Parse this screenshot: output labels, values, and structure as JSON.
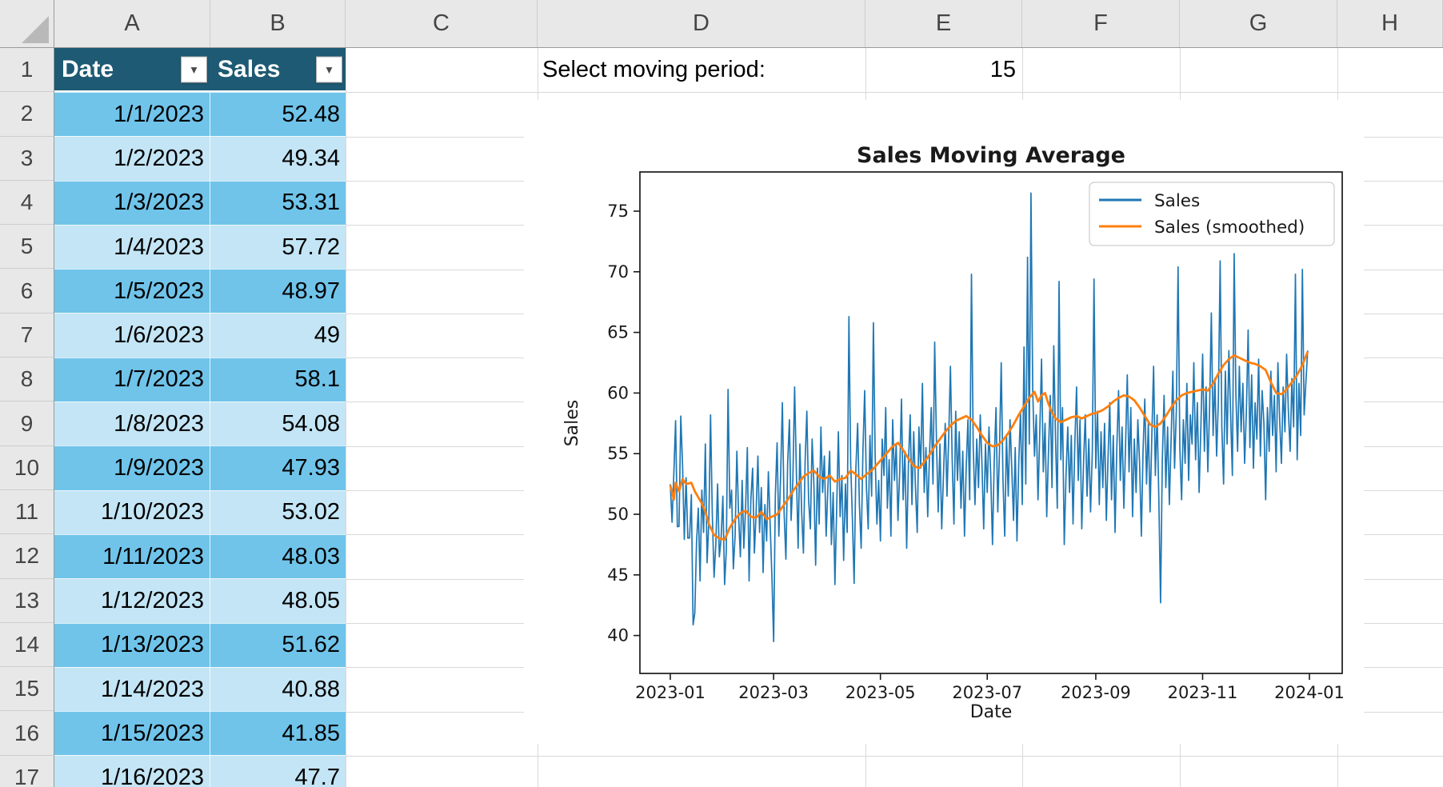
{
  "sheet": {
    "column_letters": [
      "A",
      "B",
      "C",
      "D",
      "E",
      "F",
      "G",
      "H"
    ],
    "row_numbers": [
      "1",
      "2",
      "3",
      "4",
      "5",
      "6",
      "7",
      "8",
      "9",
      "10",
      "11",
      "12",
      "13",
      "14",
      "15",
      "16",
      "17"
    ]
  },
  "controls": {
    "moving_period_label": "Select moving period:",
    "moving_period_value": "15"
  },
  "table": {
    "headers": {
      "date": "Date",
      "sales": "Sales"
    },
    "filter_icon": "▾",
    "colors": {
      "header_bg": "#1E5A73",
      "band_dark": "#70C4EA",
      "band_light": "#C3E5F5"
    },
    "rows": [
      {
        "date": "1/1/2023",
        "sales": "52.48"
      },
      {
        "date": "1/2/2023",
        "sales": "49.34"
      },
      {
        "date": "1/3/2023",
        "sales": "53.31"
      },
      {
        "date": "1/4/2023",
        "sales": "57.72"
      },
      {
        "date": "1/5/2023",
        "sales": "48.97"
      },
      {
        "date": "1/6/2023",
        "sales": "49"
      },
      {
        "date": "1/7/2023",
        "sales": "58.1"
      },
      {
        "date": "1/8/2023",
        "sales": "54.08"
      },
      {
        "date": "1/9/2023",
        "sales": "47.93"
      },
      {
        "date": "1/10/2023",
        "sales": "53.02"
      },
      {
        "date": "1/11/2023",
        "sales": "48.03"
      },
      {
        "date": "1/12/2023",
        "sales": "48.05"
      },
      {
        "date": "1/13/2023",
        "sales": "51.62"
      },
      {
        "date": "1/14/2023",
        "sales": "40.88"
      },
      {
        "date": "1/15/2023",
        "sales": "41.85"
      },
      {
        "date": "1/16/2023",
        "sales": "47.7"
      }
    ]
  },
  "chart_data": {
    "type": "line",
    "title": "Sales Moving Average",
    "xlabel": "Date",
    "ylabel": "Sales",
    "x_tick_labels": [
      "2023-01",
      "2023-03",
      "2023-05",
      "2023-07",
      "2023-09",
      "2023-11",
      "2024-01"
    ],
    "x_tick_days": [
      0,
      59,
      120,
      181,
      243,
      304,
      365
    ],
    "y_ticks": [
      40,
      45,
      50,
      55,
      60,
      65,
      70,
      75
    ],
    "ylim": [
      36.9,
      78.3
    ],
    "xlim_days": [
      -17.4,
      382.4
    ],
    "grid": false,
    "legend_position": "upper right",
    "legend": [
      "Sales",
      "Sales (smoothed)"
    ],
    "series": [
      {
        "name": "Sales",
        "color": "#1f77b4",
        "start_date": "2023-01-01",
        "values": [
          52.48,
          49.34,
          53.31,
          57.72,
          48.97,
          49,
          58.1,
          54.08,
          47.93,
          53.02,
          48.03,
          48.05,
          51.62,
          40.88,
          41.85,
          47.7,
          50.5,
          44.5,
          52,
          48.5,
          55.8,
          46,
          49.5,
          58.2,
          50,
          44.8,
          47.5,
          52.5,
          46.5,
          48,
          51.5,
          44.2,
          47,
          60.3,
          50.5,
          52,
          45.5,
          48.2,
          55.2,
          49.8,
          46.5,
          52.8,
          47.2,
          50.5,
          55.5,
          44.5,
          51.2,
          53.8,
          46.8,
          50.2,
          54.8,
          48.5,
          52.2,
          45.2,
          50.8,
          47.8,
          53.5,
          49.2,
          44.9,
          39.5,
          51.5,
          55.9,
          48.2,
          53.2,
          59.2,
          50.1,
          46.3,
          54.2,
          57.8,
          49.5,
          52.8,
          60.5,
          53.5,
          47.2,
          55.8,
          50.2,
          46.8,
          54.5,
          58.5,
          51.2,
          48.8,
          56.2,
          52.5,
          45.8,
          53.8,
          49.2,
          57.2,
          51.8,
          54.8,
          48.2,
          52.2,
          55.2,
          47.5,
          51.8,
          44.2,
          50.5,
          56.8,
          49.8,
          53.2,
          46.2,
          52.5,
          48.5,
          66.3,
          54.2,
          49.5,
          44.3,
          53.8,
          57.5,
          50.8,
          47.2,
          55.2,
          60.2,
          52.2,
          48.8,
          56.5,
          51.5,
          65.8,
          54.8,
          49.2,
          52.8,
          47.8,
          56.2,
          53.2,
          58.8,
          50.5,
          54.5,
          48.2,
          57.8,
          52.8,
          55.8,
          49.5,
          53.5,
          59.5,
          51.2,
          55.2,
          47.2,
          54.2,
          58.2,
          50.8,
          56.8,
          52.2,
          48.5,
          57.2,
          53.8,
          60.8,
          51.8,
          55.5,
          49.8,
          54.8,
          58.8,
          52.5,
          64.2,
          56.2,
          50.2,
          55.8,
          48.8,
          53.2,
          57.5,
          51.5,
          56.5,
          62.2,
          54.5,
          49.2,
          58.5,
          52.8,
          56.8,
          50.5,
          55.2,
          48.2,
          53.8,
          57.8,
          51.2,
          69.8,
          55.5,
          50.8,
          56.2,
          52.2,
          58.2,
          54.2,
          48.8,
          55.8,
          51.8,
          57.2,
          53.2,
          47.5,
          54.5,
          58.8,
          50.2,
          55.2,
          62.5,
          52.8,
          48.2,
          56.5,
          51.5,
          57.8,
          53.8,
          49.5,
          55.5,
          47.8,
          54.2,
          58.5,
          50.8,
          63.8,
          52.5,
          71.2,
          55.8,
          76.5,
          60.2,
          54.8,
          58.2,
          51.2,
          56.8,
          62.8,
          53.5,
          57.5,
          49.8,
          55.2,
          59.8,
          52.2,
          63.9,
          56.2,
          50.5,
          69.2,
          54.5,
          58.8,
          47.5,
          53.2,
          57.2,
          51.8,
          56.5,
          49.2,
          55.8,
          60.5,
          52.8,
          57.8,
          48.8,
          54.2,
          58.2,
          51.5,
          56.2,
          50.2,
          55.2,
          69.4,
          53.8,
          58.5,
          50.8,
          56.8,
          52.2,
          57.5,
          49.5,
          54.8,
          59.2,
          51.2,
          56.5,
          48.5,
          55.5,
          60.2,
          52.8,
          57.2,
          50.5,
          55.8,
          61.5,
          53.5,
          58.8,
          49.8,
          56.2,
          51.8,
          57.8,
          54.2,
          48.2,
          55.2,
          59.5,
          52.5,
          57.5,
          50.2,
          56.5,
          62.2,
          53.2,
          58.2,
          51.5,
          42.7,
          54.5,
          59.8,
          52.2,
          57.2,
          50.8,
          56.2,
          61.8,
          53.8,
          58.5,
          70.4,
          55.5,
          51.2,
          57.8,
          54.2,
          60.8,
          52.8,
          58.2,
          55.8,
          62.5,
          54.5,
          59.2,
          51.8,
          57.2,
          63.2,
          55.2,
          60.5,
          53.5,
          58.8,
          66.6,
          56.5,
          61.2,
          54.8,
          59.5,
          70.9,
          57.2,
          52.5,
          61.8,
          55.8,
          63.5,
          58.2,
          53.2,
          71.5,
          59.8,
          55.2,
          62.2,
          56.8,
          60.8,
          54.2,
          58.5,
          65.2,
          55.5,
          61.5,
          53.8,
          59.2,
          56.2,
          62.8,
          54.8,
          60.2,
          57.5,
          51.2,
          58.8,
          55.2,
          61.8,
          56.5,
          59.8,
          53.5,
          62.5,
          57.8,
          54.2,
          60.5,
          56.8,
          63.2,
          58.5,
          55.2,
          61.2,
          57.2,
          69.8,
          54.5,
          60.8,
          56.5,
          70.2,
          58.2,
          60.9,
          63.5
        ]
      },
      {
        "name": "Sales (smoothed)",
        "color": "#ff7f0e",
        "window": 15,
        "points": [
          [
            0,
            52.4
          ],
          [
            2,
            51.2
          ],
          [
            3,
            52.6
          ],
          [
            5,
            51.9
          ],
          [
            7,
            52.9
          ],
          [
            9,
            52.5
          ],
          [
            12,
            52.6
          ],
          [
            14,
            51.9
          ],
          [
            16,
            51.4
          ],
          [
            18,
            50.9
          ],
          [
            20,
            50.2
          ],
          [
            22,
            49.2
          ],
          [
            25,
            48.3
          ],
          [
            28,
            48.0
          ],
          [
            31,
            47.9
          ],
          [
            34,
            48.9
          ],
          [
            37,
            49.6
          ],
          [
            40,
            50.1
          ],
          [
            43,
            50.3
          ],
          [
            46,
            49.8
          ],
          [
            49,
            49.7
          ],
          [
            52,
            50.2
          ],
          [
            55,
            49.6
          ],
          [
            58,
            49.8
          ],
          [
            61,
            50.0
          ],
          [
            64,
            50.6
          ],
          [
            67,
            51.2
          ],
          [
            70,
            51.9
          ],
          [
            73,
            52.5
          ],
          [
            76,
            53.1
          ],
          [
            79,
            53.4
          ],
          [
            82,
            53.6
          ],
          [
            85,
            53.1
          ],
          [
            88,
            52.9
          ],
          [
            91,
            53.2
          ],
          [
            94,
            52.7
          ],
          [
            97,
            52.9
          ],
          [
            100,
            53.0
          ],
          [
            103,
            53.6
          ],
          [
            106,
            53.3
          ],
          [
            109,
            52.9
          ],
          [
            112,
            53.3
          ],
          [
            115,
            53.6
          ],
          [
            118,
            54.1
          ],
          [
            121,
            54.6
          ],
          [
            124,
            55.1
          ],
          [
            127,
            55.6
          ],
          [
            130,
            55.9
          ],
          [
            133,
            55.3
          ],
          [
            136,
            54.6
          ],
          [
            139,
            54.0
          ],
          [
            142,
            53.8
          ],
          [
            145,
            54.3
          ],
          [
            148,
            54.9
          ],
          [
            151,
            55.6
          ],
          [
            154,
            56.2
          ],
          [
            157,
            56.8
          ],
          [
            160,
            57.3
          ],
          [
            163,
            57.7
          ],
          [
            166,
            57.9
          ],
          [
            169,
            58.1
          ],
          [
            172,
            57.8
          ],
          [
            175,
            57.2
          ],
          [
            178,
            56.5
          ],
          [
            181,
            55.9
          ],
          [
            184,
            55.6
          ],
          [
            187,
            55.7
          ],
          [
            190,
            56.1
          ],
          [
            193,
            56.7
          ],
          [
            196,
            57.4
          ],
          [
            199,
            58.2
          ],
          [
            202,
            58.9
          ],
          [
            205,
            59.6
          ],
          [
            208,
            60.1
          ],
          [
            210,
            59.3
          ],
          [
            212,
            59.8
          ],
          [
            214,
            60.0
          ],
          [
            216,
            59.1
          ],
          [
            218,
            58.4
          ],
          [
            220,
            57.9
          ],
          [
            223,
            57.6
          ],
          [
            226,
            57.8
          ],
          [
            229,
            58.0
          ],
          [
            232,
            58.1
          ],
          [
            235,
            57.9
          ],
          [
            238,
            58.1
          ],
          [
            241,
            58.3
          ],
          [
            244,
            58.4
          ],
          [
            247,
            58.6
          ],
          [
            250,
            58.9
          ],
          [
            253,
            59.3
          ],
          [
            256,
            59.6
          ],
          [
            259,
            59.8
          ],
          [
            262,
            59.7
          ],
          [
            265,
            59.4
          ],
          [
            268,
            58.8
          ],
          [
            271,
            58.1
          ],
          [
            274,
            57.4
          ],
          [
            277,
            57.2
          ],
          [
            280,
            57.5
          ],
          [
            283,
            58.1
          ],
          [
            286,
            58.8
          ],
          [
            289,
            59.4
          ],
          [
            292,
            59.8
          ],
          [
            295,
            60.0
          ],
          [
            298,
            60.1
          ],
          [
            301,
            60.2
          ],
          [
            304,
            60.3
          ],
          [
            307,
            60.2
          ],
          [
            310,
            60.8
          ],
          [
            313,
            61.6
          ],
          [
            316,
            62.3
          ],
          [
            319,
            62.8
          ],
          [
            322,
            63.1
          ],
          [
            325,
            62.9
          ],
          [
            328,
            62.7
          ],
          [
            331,
            62.5
          ],
          [
            334,
            62.4
          ],
          [
            337,
            62.2
          ],
          [
            340,
            61.9
          ],
          [
            343,
            60.9
          ],
          [
            346,
            60.0
          ],
          [
            349,
            59.9
          ],
          [
            352,
            60.3
          ],
          [
            355,
            60.9
          ],
          [
            358,
            61.5
          ],
          [
            361,
            62.3
          ],
          [
            364,
            63.4
          ]
        ]
      }
    ]
  }
}
